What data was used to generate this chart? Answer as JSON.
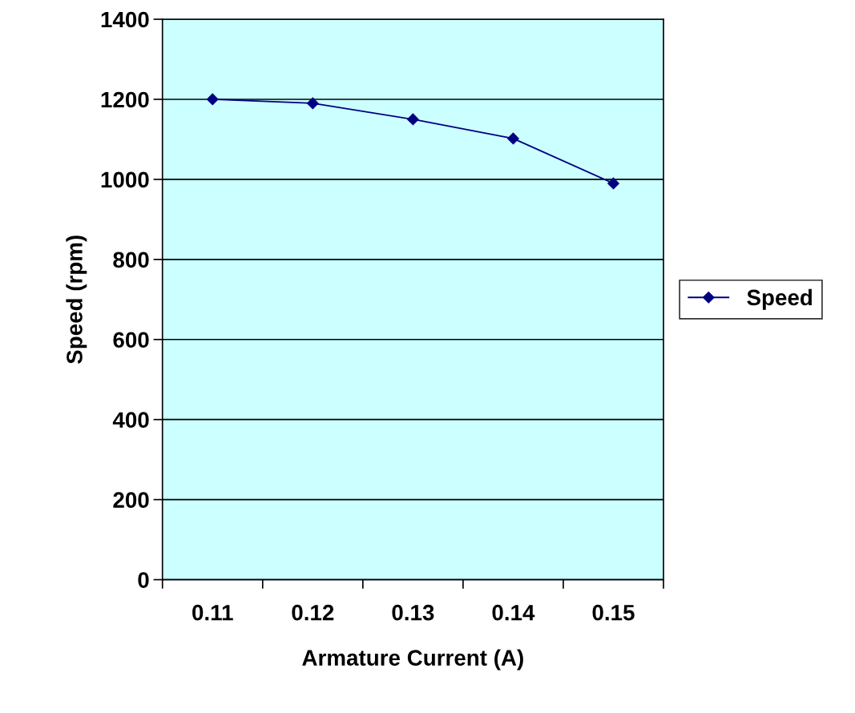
{
  "chart_data": {
    "type": "line",
    "xlabel": "Armature Current (A)",
    "ylabel": "Speed (rpm)",
    "categories": [
      "0.11",
      "0.12",
      "0.13",
      "0.14",
      "0.15"
    ],
    "series": [
      {
        "name": "Speed",
        "color": "#000080",
        "values": [
          1200,
          1190,
          1150,
          1102,
          990
        ]
      }
    ],
    "ylim": [
      0,
      1400
    ],
    "yticks": [
      0,
      200,
      400,
      600,
      800,
      1000,
      1200,
      1400
    ],
    "grid": "y",
    "legend": "right",
    "marker": "diamond",
    "line_style": "solid"
  }
}
